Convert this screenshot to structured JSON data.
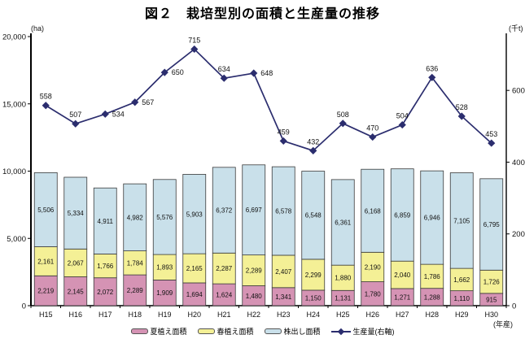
{
  "title": "図２　栽培型別の面積と生産量の推移",
  "units": {
    "left": "(ha)",
    "right": "(千t)",
    "x": "(年産)"
  },
  "chart_data": {
    "type": "bar",
    "subtype": "stacked-bar-with-line-combo",
    "categories": [
      "H15",
      "H16",
      "H17",
      "H18",
      "H19",
      "H20",
      "H21",
      "H22",
      "H23",
      "H24",
      "H25",
      "H26",
      "H27",
      "H28",
      "H29",
      "H30"
    ],
    "series": [
      {
        "name": "夏植え面積",
        "type": "bar",
        "stack": "area",
        "color": "#d593b4",
        "values": [
          2219,
          2145,
          2072,
          2289,
          1909,
          1694,
          1624,
          1480,
          1341,
          1150,
          1131,
          1780,
          1271,
          1288,
          1110,
          915
        ]
      },
      {
        "name": "春植え面積",
        "type": "bar",
        "stack": "area",
        "color": "#f4f096",
        "values": [
          2161,
          2067,
          1766,
          1784,
          1893,
          2165,
          2287,
          2289,
          2407,
          2299,
          1880,
          2190,
          2040,
          1786,
          1662,
          1726
        ]
      },
      {
        "name": "株出し面積",
        "type": "bar",
        "stack": "area",
        "color": "#c9e0ea",
        "values": [
          5506,
          5334,
          4911,
          4982,
          5576,
          5903,
          6372,
          6697,
          6578,
          6548,
          6361,
          6168,
          6859,
          6946,
          7105,
          6795
        ]
      },
      {
        "name": "生産量(右軸)",
        "type": "line",
        "axis": "right",
        "color": "#2b2d6e",
        "values": [
          558,
          507,
          534,
          567,
          650,
          715,
          634,
          648,
          459,
          432,
          508,
          470,
          504,
          636,
          528,
          453
        ]
      }
    ],
    "left_axis": {
      "unit": "(ha)",
      "min": 0,
      "max": 20000,
      "ticks": [
        0,
        5000,
        10000,
        15000,
        20000
      ]
    },
    "right_axis": {
      "unit": "(千t)",
      "min": 0,
      "max": 750,
      "ticks": [
        0,
        200,
        400,
        600
      ]
    },
    "xlabel": "(年産)",
    "title": "図２　栽培型別の面積と生産量の推移",
    "grid": false,
    "legend_position": "bottom",
    "bar_labels_visible": true,
    "line_labels_visible": true
  },
  "colors": {
    "summer_bar": "#d593b4",
    "spring_bar": "#f4f096",
    "ratoon_bar": "#c9e0ea",
    "production_line": "#2b2d6e",
    "bar_border": "#3a3a3a",
    "axis": "#000000"
  }
}
